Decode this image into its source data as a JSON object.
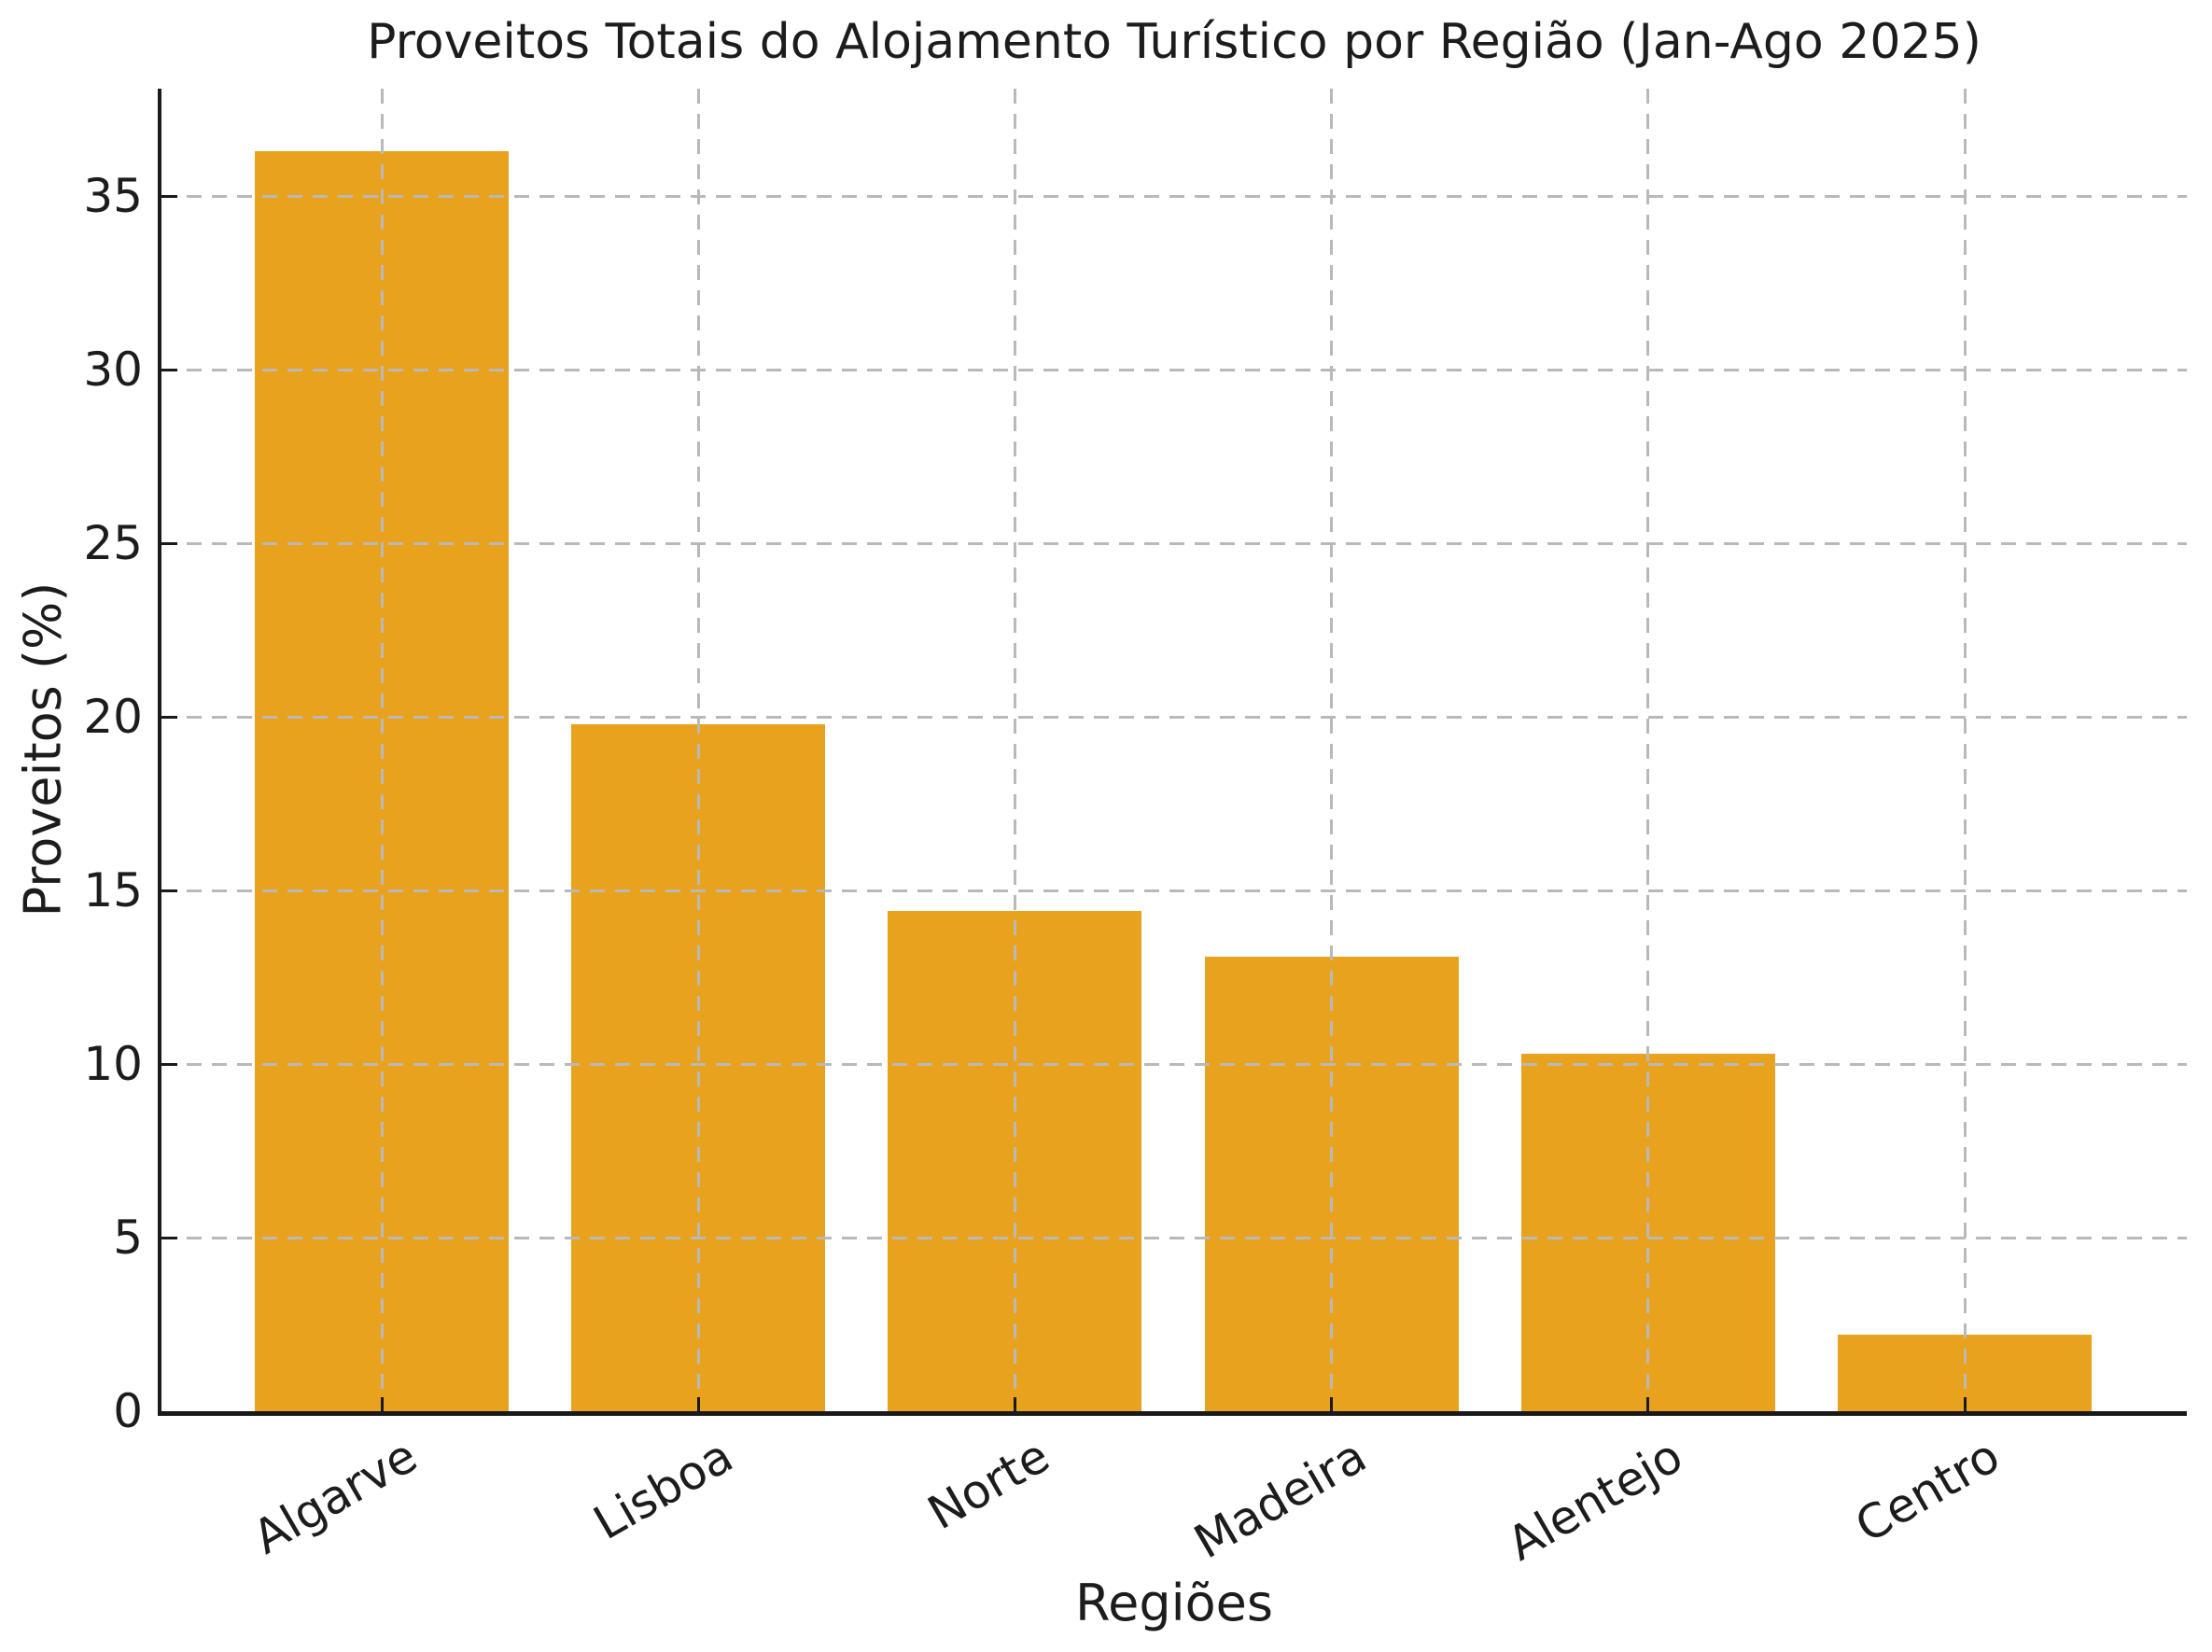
{
  "chart_data": {
    "type": "bar",
    "title": "Proveitos Totais do Alojamento Turístico por Região (Jan-Ago 2025)",
    "xlabel": "Regiões",
    "ylabel": "Proveitos (%)",
    "categories": [
      "Algarve",
      "Lisboa",
      "Norte",
      "Madeira",
      "Alentejo",
      "Centro"
    ],
    "values": [
      36.3,
      19.8,
      14.4,
      13.1,
      10.3,
      2.2
    ],
    "yticks": [
      0,
      5,
      10,
      15,
      20,
      25,
      30,
      35
    ],
    "ylim": [
      0,
      38.1
    ],
    "bar_color": "#E8A21D",
    "grid": {
      "visible": true,
      "style": "dashed",
      "color": "#b9b9b9",
      "drawn_over_bars": true
    },
    "axis_color": "#1a1a1a",
    "text_color": "#1c1c1c",
    "tick_direction": "in",
    "xtick_rotation_deg": 30,
    "legend_position": "none"
  }
}
